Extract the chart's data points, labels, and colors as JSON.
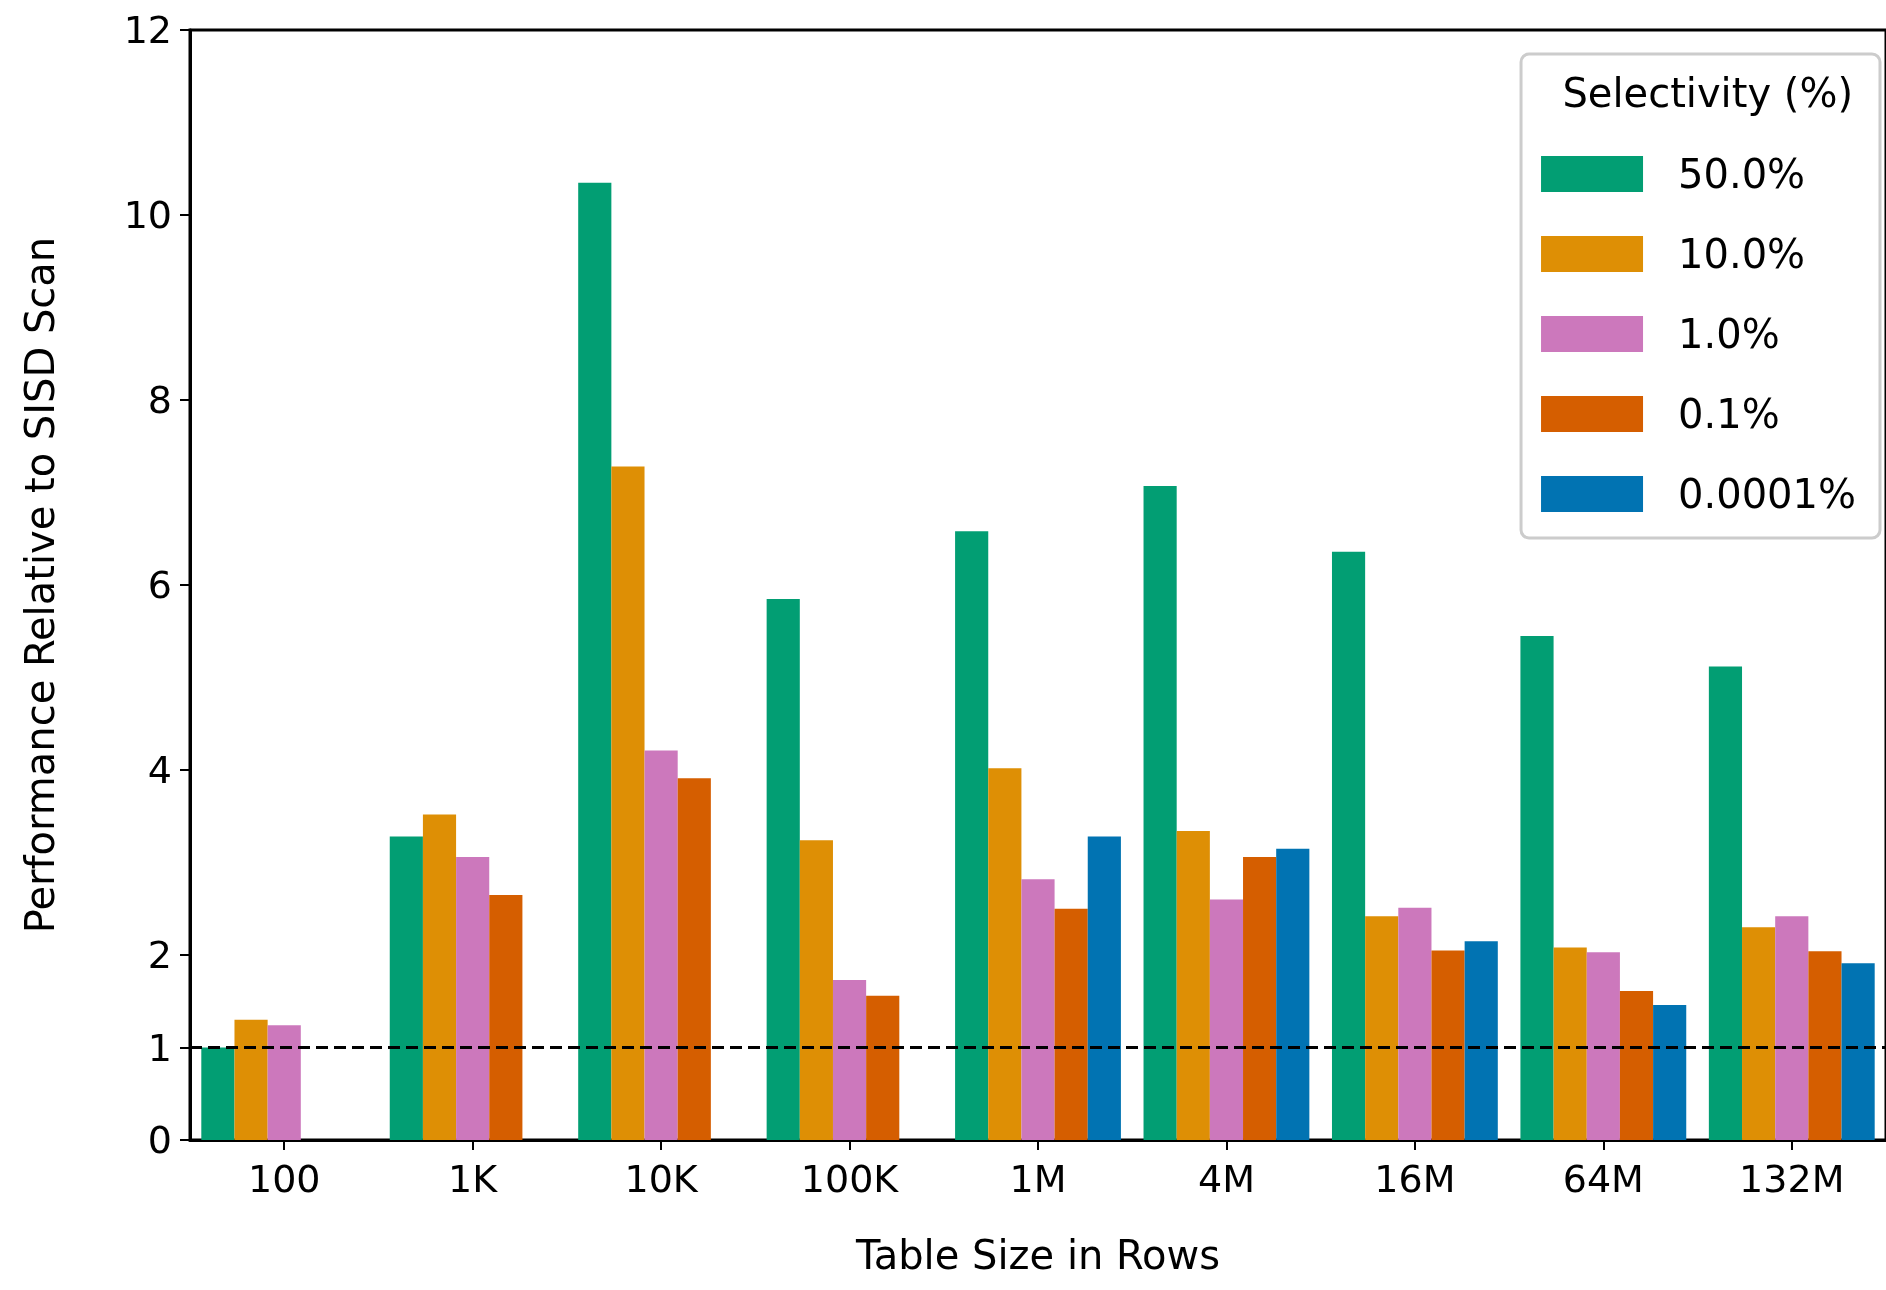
{
  "chart_data": {
    "type": "bar",
    "xlabel": "Table Size in Rows",
    "ylabel": "Performance Relative to SISD Scan",
    "legend_title": "Selectivity (%)",
    "categories": [
      "100",
      "1K",
      "10K",
      "100K",
      "1M",
      "4M",
      "16M",
      "64M",
      "132M"
    ],
    "series": [
      {
        "name": "50.0%",
        "color": "#029e73",
        "values": [
          1.0,
          3.28,
          10.35,
          5.85,
          6.58,
          7.07,
          6.36,
          5.45,
          5.12
        ]
      },
      {
        "name": "10.0%",
        "color": "#de8f05",
        "values": [
          1.3,
          3.52,
          7.28,
          3.24,
          4.02,
          3.34,
          2.42,
          2.08,
          2.3
        ]
      },
      {
        "name": "1.0%",
        "color": "#cc78bc",
        "values": [
          1.24,
          3.06,
          4.21,
          1.73,
          2.82,
          2.6,
          2.51,
          2.03,
          2.42
        ]
      },
      {
        "name": "0.1%",
        "color": "#d55e00",
        "values": [
          null,
          2.65,
          3.91,
          1.56,
          2.5,
          3.06,
          2.05,
          1.61,
          2.04
        ]
      },
      {
        "name": "0.0001%",
        "color": "#0173b2",
        "values": [
          null,
          null,
          null,
          null,
          3.28,
          3.15,
          2.15,
          1.46,
          1.91
        ]
      }
    ],
    "ylim": [
      0,
      12
    ],
    "yticks": [
      0,
      1,
      2,
      4,
      6,
      8,
      10,
      12
    ],
    "grid": false,
    "legend": "top right",
    "ref_lines": [
      {
        "axis": "y",
        "value": 1,
        "color": "#000000",
        "line_style": "dashed"
      }
    ]
  }
}
